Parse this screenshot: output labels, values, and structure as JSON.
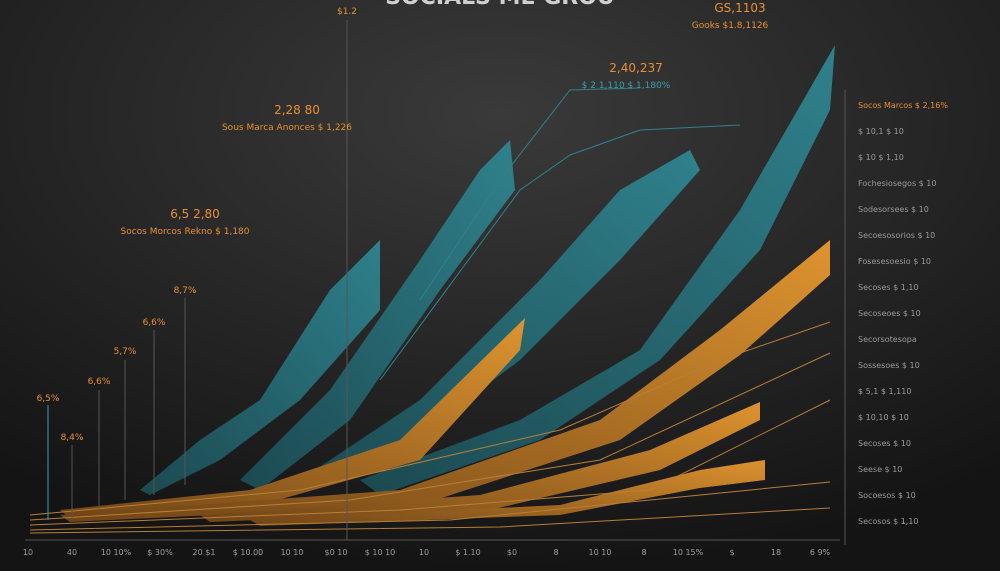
{
  "header": {
    "title": "SOCIALS ME GROU",
    "top_label": "$1.2"
  },
  "callouts": [
    {
      "value": "GS,1103",
      "label": "Gooks $1.8,1126"
    },
    {
      "value": "2,40,237",
      "label": "$ 2 1,110 $ 1,180%"
    },
    {
      "value": "2,28 80",
      "label": "Sous Marca Anonces $ 1,226"
    },
    {
      "value": "6,5 2,80",
      "label": "Socos Morcos Rekno $ 1,180"
    }
  ],
  "percent_labels": [
    "8,7%",
    "6,6%",
    "5,7%",
    "6,6%",
    "6,5%",
    "8,4%"
  ],
  "legend": [
    "Socos Marcos $ 2,16%",
    "$ 10,1 $ 10",
    "$ 10 $ 1,10",
    "Fochesiosegos $ 10",
    "Sodesorsees $ 10",
    "Secoesosorios $ 10",
    "Fosesesoesio $ 10",
    "Secoses $ 1,10",
    "Secoseoes $ 10",
    "Secorsotesopa",
    "Sossesoes $ 10",
    "$ 5,1 $ 1,110",
    "$ 10,10 $ 10",
    "Secoses $ 10",
    "Seese $ 10",
    "Socoesos $ 10",
    "Secosos $ 1,10"
  ],
  "x_labels": [
    "10",
    "40",
    "10 10%",
    "$ 30%",
    "20 $1",
    "$ 10.00",
    "10 10",
    "$0 10",
    "$ 10 10",
    "10",
    "$ 1.10",
    "$0",
    "8",
    "10 10",
    "8",
    "10 15%",
    "$",
    "18",
    "6 9%"
  ]
}
